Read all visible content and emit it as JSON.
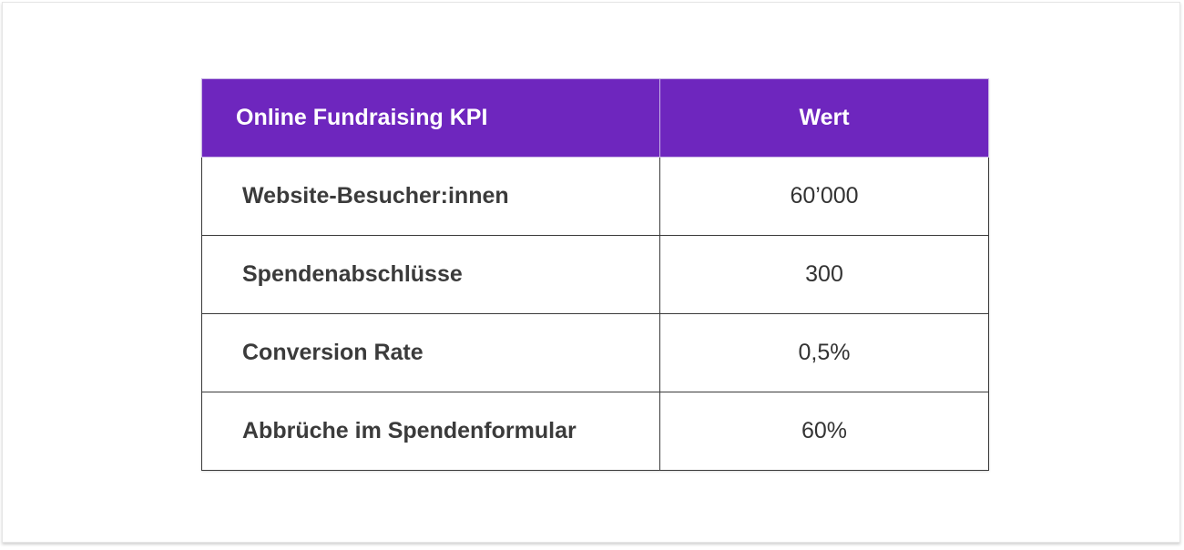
{
  "table": {
    "headers": {
      "kpi": "Online Fundraising KPI",
      "value": "Wert"
    },
    "rows": [
      {
        "kpi": "Website-Besucher:innen",
        "value": "60’000"
      },
      {
        "kpi": "Spendenabschlüsse",
        "value": "300"
      },
      {
        "kpi": "Conversion Rate",
        "value": "0,5%"
      },
      {
        "kpi": "Abbrüche im Spendenformular",
        "value": "60%"
      }
    ]
  },
  "colors": {
    "header_background": "#6e26be",
    "header_text": "#ffffff",
    "body_text": "#3b3b3b",
    "border": "#3a3a3a"
  }
}
